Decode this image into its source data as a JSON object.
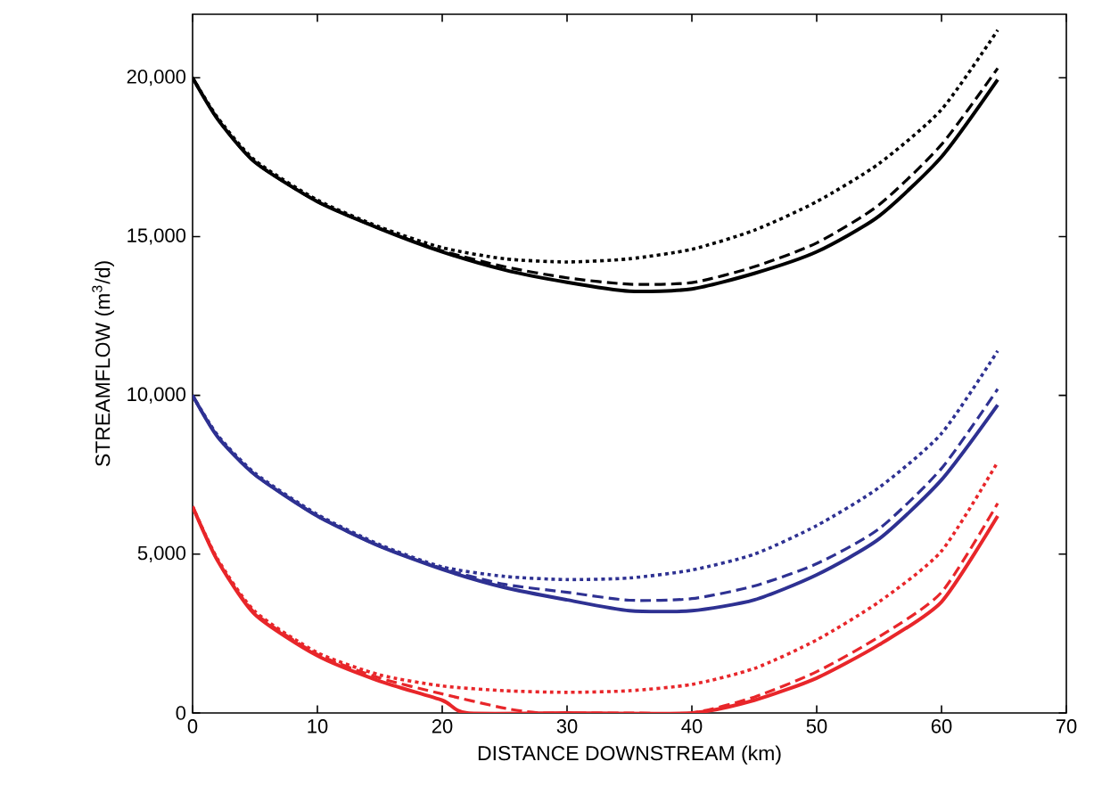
{
  "chart_data": {
    "type": "line",
    "xlabel": "DISTANCE DOWNSTREAM (km)",
    "ylabel": "STREAMFLOW (m$^{3}$/d)",
    "xlim": [
      0,
      70
    ],
    "ylim": [
      0,
      22000
    ],
    "xticks": [
      0,
      10,
      20,
      30,
      40,
      50,
      60,
      70
    ],
    "yticks": [
      {
        "value": 0,
        "label": "0"
      },
      {
        "value": 5000,
        "label": "5,000"
      },
      {
        "value": 10000,
        "label": "10,000"
      },
      {
        "value": 15000,
        "label": "15,000"
      },
      {
        "value": 20000,
        "label": "20,000"
      }
    ],
    "marker": "none",
    "series": [
      {
        "color": "#000000",
        "line_style": "solid",
        "x": [
          0,
          2,
          5,
          10,
          15,
          20,
          25,
          30,
          35,
          40,
          45,
          50,
          55,
          60,
          64.5
        ],
        "values": [
          20000,
          18700,
          17340,
          16100,
          15250,
          14520,
          13950,
          13560,
          13280,
          13350,
          13840,
          14520,
          15650,
          17510,
          19940
        ]
      },
      {
        "color": "#000000",
        "line_style": "dashed",
        "x": [
          0,
          2,
          5,
          10,
          15,
          20,
          25,
          30,
          35,
          40,
          45,
          50,
          55,
          60,
          64.5
        ],
        "values": [
          20000,
          18700,
          17340,
          16100,
          15250,
          14550,
          14050,
          13700,
          13500,
          13550,
          14050,
          14800,
          16000,
          17900,
          20300
        ]
      },
      {
        "color": "#000000",
        "line_style": "dotted",
        "x": [
          0,
          2,
          5,
          10,
          15,
          20,
          25,
          30,
          35,
          40,
          45,
          50,
          55,
          60,
          64.5
        ],
        "values": [
          20000,
          18750,
          17400,
          16150,
          15300,
          14650,
          14300,
          14200,
          14300,
          14600,
          15200,
          16100,
          17300,
          19000,
          21500
        ]
      },
      {
        "color": "#2e3192",
        "line_style": "solid",
        "x": [
          0,
          2,
          5,
          10,
          15,
          20,
          25,
          30,
          35,
          40,
          45,
          50,
          55,
          60,
          64.5
        ],
        "values": [
          10000,
          8700,
          7500,
          6200,
          5250,
          4520,
          3950,
          3560,
          3220,
          3220,
          3560,
          4350,
          5480,
          7340,
          9700
        ]
      },
      {
        "color": "#2e3192",
        "line_style": "dashed",
        "x": [
          0,
          2,
          5,
          10,
          15,
          20,
          25,
          30,
          35,
          40,
          45,
          50,
          55,
          60,
          64.5
        ],
        "values": [
          10000,
          8700,
          7500,
          6200,
          5250,
          4550,
          4050,
          3800,
          3550,
          3600,
          4000,
          4700,
          5800,
          7700,
          10200
        ]
      },
      {
        "color": "#2e3192",
        "line_style": "dotted",
        "x": [
          0,
          2,
          5,
          10,
          15,
          20,
          25,
          30,
          35,
          40,
          45,
          50,
          55,
          60,
          64.5
        ],
        "values": [
          10000,
          8750,
          7550,
          6250,
          5300,
          4600,
          4300,
          4200,
          4250,
          4500,
          5000,
          5900,
          7100,
          8800,
          11400
        ]
      },
      {
        "color": "#e8262a",
        "line_style": "solid",
        "x": [
          0,
          2,
          5,
          10,
          15,
          20,
          22,
          30,
          40,
          45,
          50,
          55,
          60,
          64.5
        ],
        "values": [
          6500,
          4800,
          3100,
          1800,
          1000,
          400,
          0,
          0,
          0,
          400,
          1100,
          2150,
          3500,
          6200
        ]
      },
      {
        "color": "#e8262a",
        "line_style": "dashed",
        "x": [
          0,
          2,
          5,
          10,
          15,
          20,
          25,
          28,
          35,
          40,
          45,
          50,
          55,
          60,
          64.5
        ],
        "values": [
          6500,
          4800,
          3150,
          1850,
          1100,
          600,
          150,
          0,
          0,
          0,
          500,
          1300,
          2400,
          3800,
          6600
        ]
      },
      {
        "color": "#e8262a",
        "line_style": "dotted",
        "x": [
          0,
          2,
          5,
          10,
          15,
          20,
          25,
          30,
          35,
          40,
          45,
          50,
          55,
          60,
          64.5
        ],
        "values": [
          6500,
          4850,
          3200,
          1900,
          1200,
          850,
          700,
          650,
          700,
          900,
          1400,
          2300,
          3500,
          5100,
          7900
        ]
      }
    ]
  }
}
